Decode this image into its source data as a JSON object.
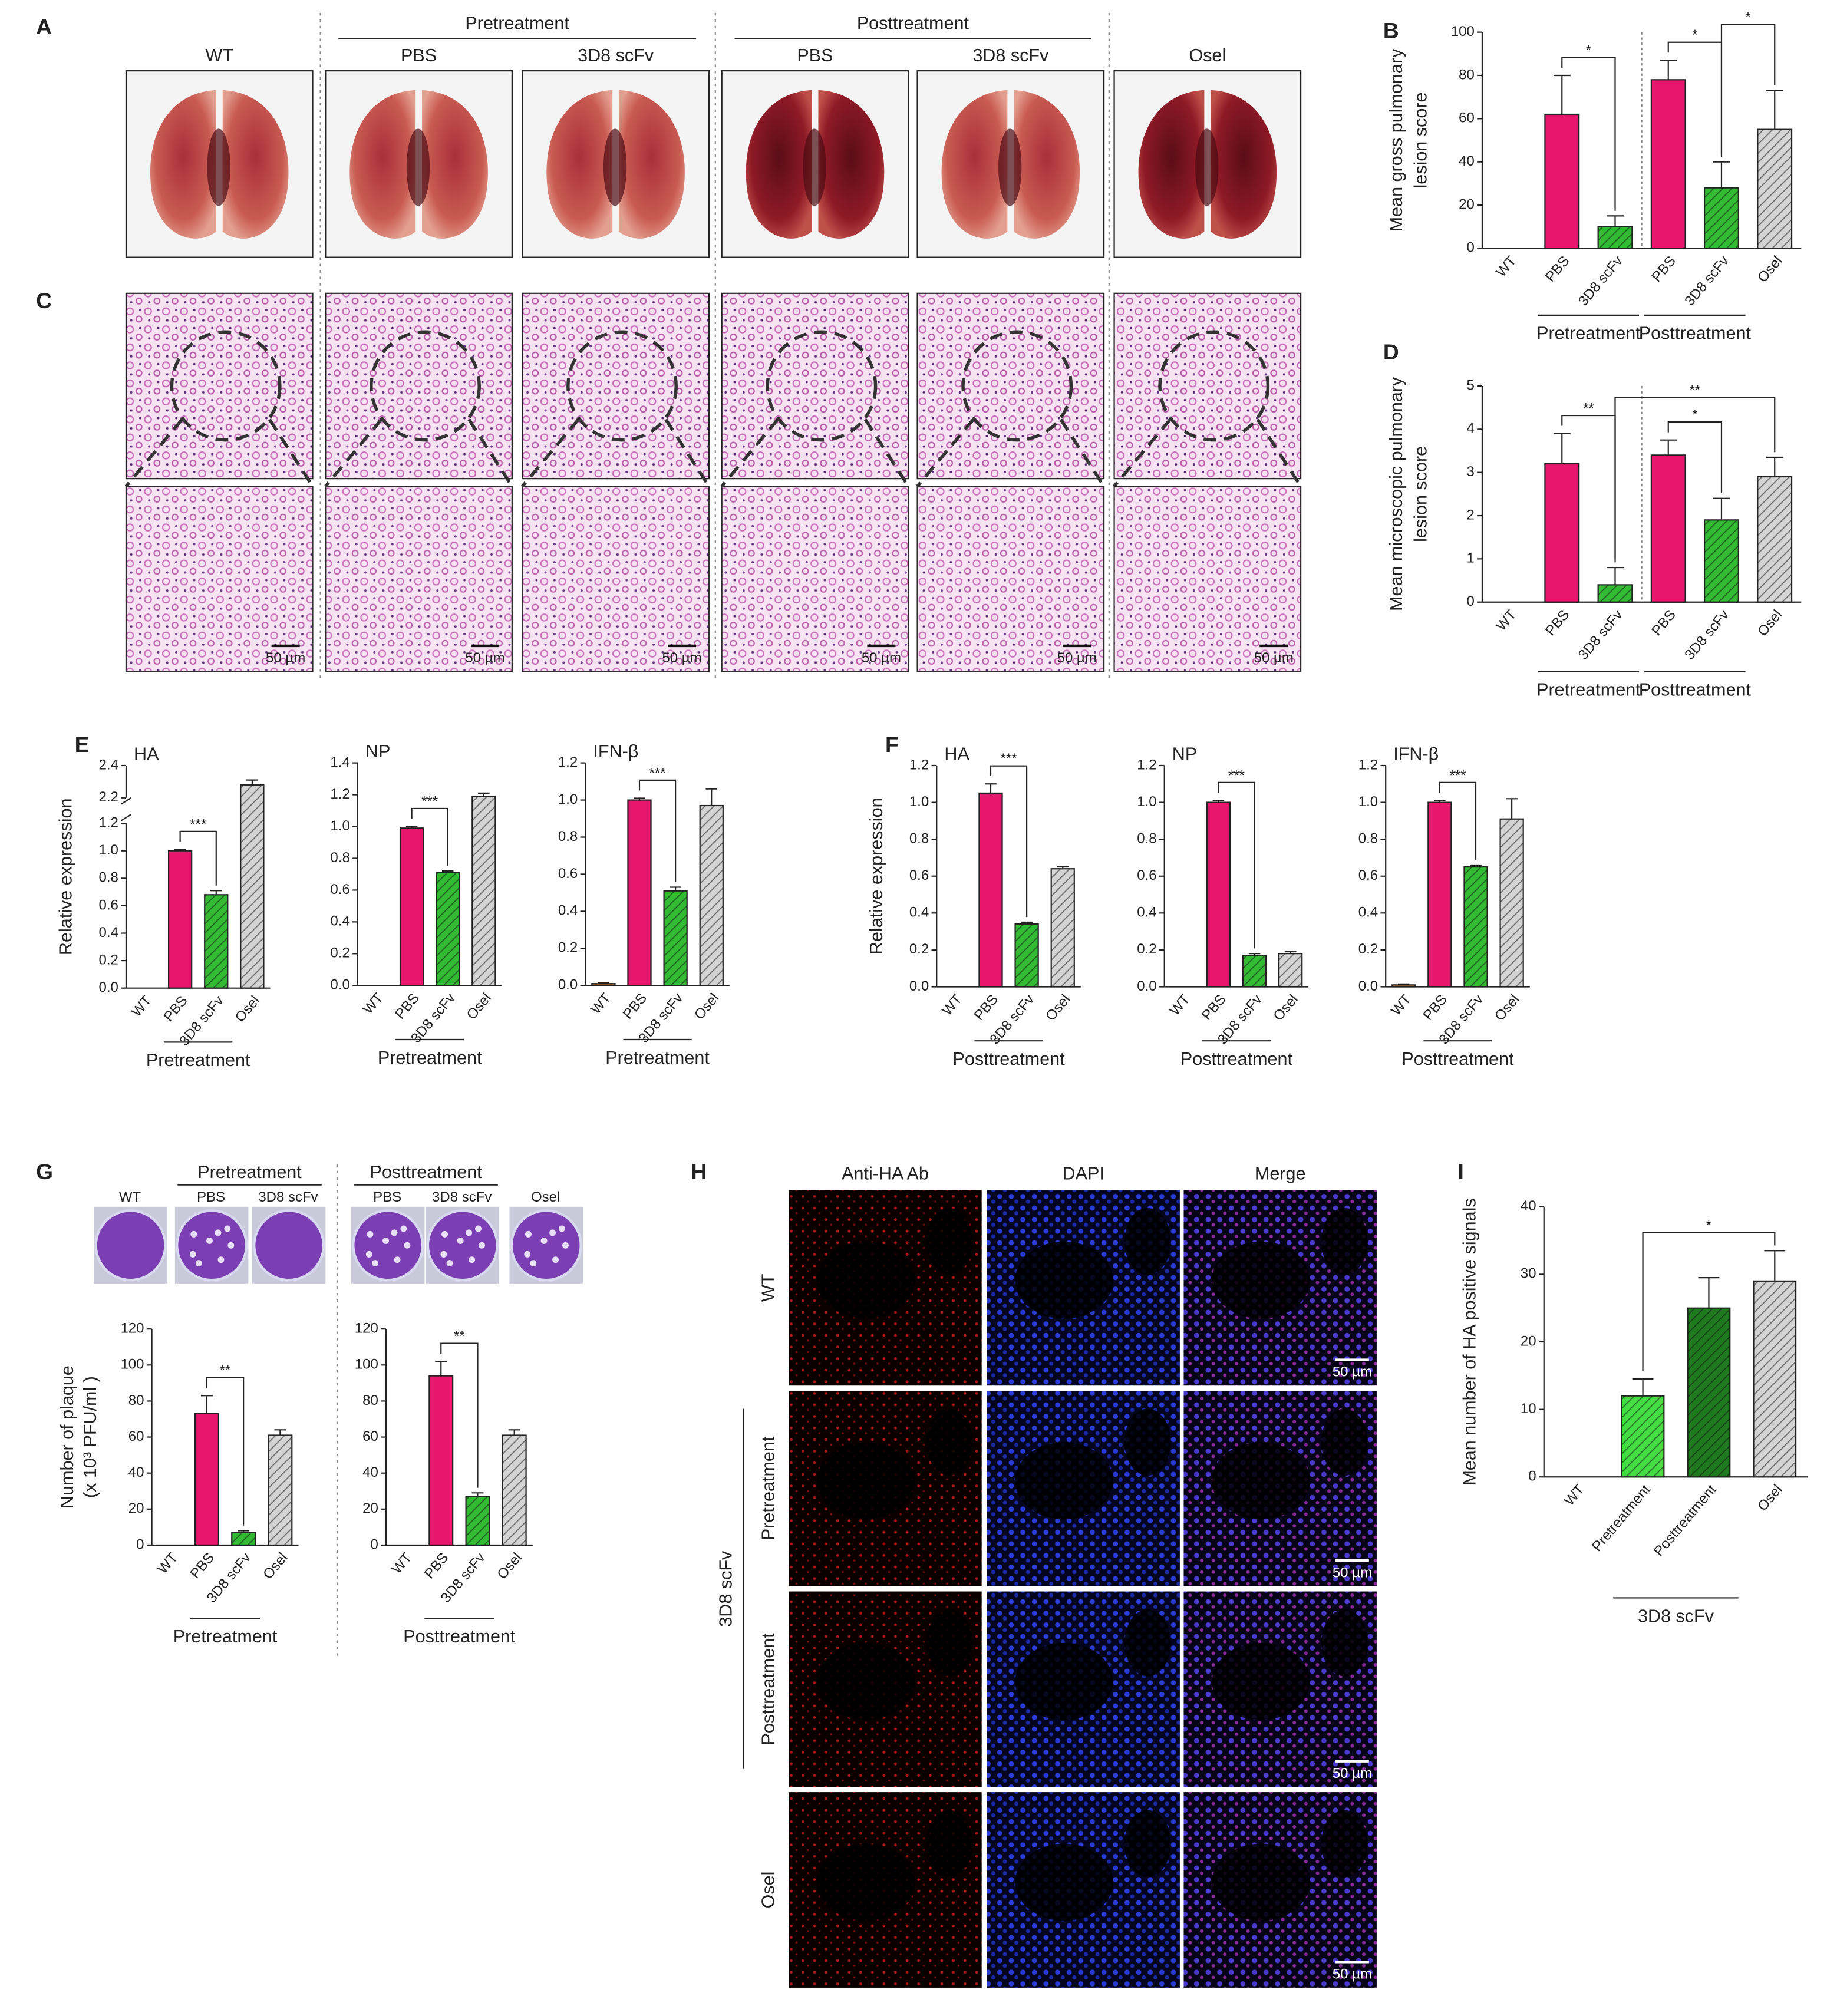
{
  "figure": {
    "panel_labels": [
      "A",
      "B",
      "C",
      "D",
      "E",
      "F",
      "G",
      "H",
      "I"
    ],
    "lungs": {
      "headers": [
        "Pretreatment",
        "Posttreatment"
      ],
      "columns": [
        "WT",
        "PBS",
        "3D8 scFv",
        "PBS",
        "3D8 scFv",
        "Osel"
      ]
    },
    "histology": {
      "scale_bars": [
        "50 µm",
        "50 µm",
        "50 µm",
        "50 µm",
        "50 µm",
        "50 µm"
      ]
    },
    "plaques": {
      "headers": [
        "Pretreatment",
        "Posttreatment"
      ],
      "wells": [
        "WT",
        "PBS",
        "3D8 scFv",
        "PBS",
        "3D8 scFv",
        "Osel"
      ]
    },
    "fluorescence": {
      "channels": [
        "Anti-HA Ab",
        "DAPI",
        "Merge"
      ],
      "rows": [
        "WT",
        "Pretreatment",
        "Posttreatment",
        "Osel"
      ],
      "group": "3D8 scFv",
      "scale_bars": [
        "50 µm",
        "50 µm",
        "50 µm",
        "50 µm"
      ]
    }
  },
  "chart_data": [
    {
      "type": "bar",
      "ylabel": [
        "Mean gross pulmonary",
        "lesion score"
      ],
      "categories": [
        "WT",
        "PBS",
        "3D8 scFv",
        "PBS",
        "3D8 scFv",
        "Osel"
      ],
      "values": [
        0,
        62,
        10,
        78,
        28,
        55
      ],
      "errors": [
        null,
        18,
        5,
        9,
        12,
        18
      ],
      "colors": [
        "#ffffff",
        "#e8176e",
        "#33bb33",
        "#e8176e",
        "#33bb33",
        "#d4d4d4"
      ],
      "hatch": [
        false,
        false,
        true,
        false,
        true,
        true
      ],
      "ylim": [
        0,
        100
      ],
      "yticks": [
        0,
        20,
        40,
        60,
        80,
        100
      ],
      "groups": [
        {
          "label": "Pretreatment",
          "from": 1,
          "to": 2
        },
        {
          "label": "Posttreatment",
          "from": 3,
          "to": 4
        }
      ],
      "divider": true,
      "significance": [
        {
          "label": "*",
          "from": 1,
          "to": 2
        },
        {
          "label": "*",
          "from": 3,
          "to": 4
        },
        {
          "label": "*",
          "from": 4,
          "to": 5
        }
      ]
    },
    {
      "type": "bar",
      "ylabel": [
        "Mean microscopic pulmonary",
        "lesion score"
      ],
      "categories": [
        "WT",
        "PBS",
        "3D8 scFv",
        "PBS",
        "3D8 scFv",
        "Osel"
      ],
      "values": [
        0,
        3.2,
        0.4,
        3.4,
        1.9,
        2.9
      ],
      "errors": [
        null,
        0.7,
        0.4,
        0.35,
        0.5,
        0.45
      ],
      "colors": [
        "#ffffff",
        "#e8176e",
        "#33bb33",
        "#e8176e",
        "#33bb33",
        "#d4d4d4"
      ],
      "hatch": [
        false,
        false,
        true,
        false,
        true,
        true
      ],
      "ylim": [
        0,
        5
      ],
      "yticks": [
        0,
        1,
        2,
        3,
        4,
        5
      ],
      "groups": [
        {
          "label": "Pretreatment",
          "from": 1,
          "to": 2
        },
        {
          "label": "Posttreatment",
          "from": 3,
          "to": 4
        }
      ],
      "divider": true,
      "significance": [
        {
          "label": "**",
          "from": 1,
          "to": 2
        },
        {
          "label": "*",
          "from": 3,
          "to": 4
        },
        {
          "label": "**",
          "from": 2,
          "to": 5
        }
      ]
    },
    {
      "type": "bar",
      "title": "HA",
      "ylabel": [
        "Relative expression"
      ],
      "categories": [
        "WT",
        "PBS",
        "3D8 scFv",
        "Osel"
      ],
      "values": [
        0,
        1.0,
        0.68,
        2.28
      ],
      "errors": [
        null,
        0.01,
        0.03,
        0.03
      ],
      "colors": [
        "#ffffff",
        "#e8176e",
        "#33bb33",
        "#d4d4d4"
      ],
      "hatch": [
        false,
        false,
        true,
        true
      ],
      "ylim": [
        0,
        2.4
      ],
      "ybreak": [
        1.2,
        2.2
      ],
      "yticks": [
        {
          "value": 0,
          "label": "0.0"
        },
        0.2,
        0.4,
        0.6,
        0.8,
        {
          "value": 1,
          "label": "1.0"
        },
        1.2,
        2.2,
        2.4
      ],
      "groups": [
        {
          "label": "Pretreatment",
          "from": 1,
          "to": 2
        }
      ],
      "significance": [
        {
          "label": "***",
          "from": 1,
          "to": 2
        }
      ]
    },
    {
      "type": "bar",
      "title": "NP",
      "categories": [
        "WT",
        "PBS",
        "3D8 scFv",
        "Osel"
      ],
      "values": [
        0,
        0.99,
        0.71,
        1.19
      ],
      "errors": [
        null,
        0.01,
        0.01,
        0.02
      ],
      "colors": [
        "#ffffff",
        "#e8176e",
        "#33bb33",
        "#d4d4d4"
      ],
      "hatch": [
        false,
        false,
        true,
        true
      ],
      "ylim": [
        0,
        1.4
      ],
      "yticks": [
        {
          "value": 0,
          "label": "0.0"
        },
        0.2,
        0.4,
        0.6,
        0.8,
        {
          "value": 1,
          "label": "1.0"
        },
        1.2,
        1.4
      ],
      "groups": [
        {
          "label": "Pretreatment",
          "from": 1,
          "to": 2
        }
      ],
      "significance": [
        {
          "label": "***",
          "from": 1,
          "to": 2
        }
      ]
    },
    {
      "type": "bar",
      "title": "IFN-β",
      "categories": [
        "WT",
        "PBS",
        "3D8 scFv",
        "Osel"
      ],
      "values": [
        0.01,
        1.0,
        0.51,
        0.97
      ],
      "errors": [
        0.005,
        0.01,
        0.02,
        0.09
      ],
      "colors": [
        "#8a5a2a",
        "#e8176e",
        "#33bb33",
        "#d4d4d4"
      ],
      "hatch": [
        false,
        false,
        true,
        true
      ],
      "ylim": [
        0,
        1.2
      ],
      "yticks": [
        {
          "value": 0,
          "label": "0.0"
        },
        0.2,
        0.4,
        0.6,
        0.8,
        {
          "value": 1,
          "label": "1.0"
        },
        1.2
      ],
      "groups": [
        {
          "label": "Pretreatment",
          "from": 1,
          "to": 2
        }
      ],
      "significance": [
        {
          "label": "***",
          "from": 1,
          "to": 2
        }
      ]
    },
    {
      "type": "bar",
      "title": "HA",
      "ylabel": [
        "Relative expression"
      ],
      "categories": [
        "WT",
        "PBS",
        "3D8 scFv",
        "Osel"
      ],
      "values": [
        0,
        1.05,
        0.34,
        0.64
      ],
      "errors": [
        null,
        0.05,
        0.01,
        0.01
      ],
      "colors": [
        "#ffffff",
        "#e8176e",
        "#33bb33",
        "#d4d4d4"
      ],
      "hatch": [
        false,
        false,
        true,
        true
      ],
      "ylim": [
        0,
        1.2
      ],
      "yticks": [
        {
          "value": 0,
          "label": "0.0"
        },
        0.2,
        0.4,
        0.6,
        0.8,
        {
          "value": 1,
          "label": "1.0"
        },
        1.2
      ],
      "groups": [
        {
          "label": "Posttreatment",
          "from": 1,
          "to": 2
        }
      ],
      "significance": [
        {
          "label": "***",
          "from": 1,
          "to": 2
        }
      ]
    },
    {
      "type": "bar",
      "title": "NP",
      "categories": [
        "WT",
        "PBS",
        "3D8 scFv",
        "Osel"
      ],
      "values": [
        0,
        1.0,
        0.17,
        0.18
      ],
      "errors": [
        null,
        0.01,
        0.01,
        0.01
      ],
      "colors": [
        "#ffffff",
        "#e8176e",
        "#33bb33",
        "#d4d4d4"
      ],
      "hatch": [
        false,
        false,
        true,
        true
      ],
      "ylim": [
        0,
        1.2
      ],
      "yticks": [
        {
          "value": 0,
          "label": "0.0"
        },
        0.2,
        0.4,
        0.6,
        0.8,
        {
          "value": 1,
          "label": "1.0"
        },
        1.2
      ],
      "groups": [
        {
          "label": "Posttreatment",
          "from": 1,
          "to": 2
        }
      ],
      "significance": [
        {
          "label": "***",
          "from": 1,
          "to": 2
        }
      ]
    },
    {
      "type": "bar",
      "title": "IFN-β",
      "categories": [
        "WT",
        "PBS",
        "3D8 scFv",
        "Osel"
      ],
      "values": [
        0.01,
        1.0,
        0.65,
        0.91
      ],
      "errors": [
        0.005,
        0.01,
        0.01,
        0.11
      ],
      "colors": [
        "#c8843c",
        "#e8176e",
        "#33bb33",
        "#d4d4d4"
      ],
      "hatch": [
        false,
        false,
        true,
        true
      ],
      "ylim": [
        0,
        1.2
      ],
      "yticks": [
        {
          "value": 0,
          "label": "0.0"
        },
        0.2,
        0.4,
        0.6,
        0.8,
        {
          "value": 1,
          "label": "1.0"
        },
        1.2
      ],
      "groups": [
        {
          "label": "Posttreatment",
          "from": 1,
          "to": 2
        }
      ],
      "significance": [
        {
          "label": "***",
          "from": 1,
          "to": 2
        }
      ]
    },
    {
      "type": "bar",
      "ylabel": [
        "Number of plaque",
        "(x 10³ PFU/ml )"
      ],
      "categories": [
        "WT",
        "PBS",
        "3D8 scFv",
        "Osel"
      ],
      "values": [
        0,
        73,
        7,
        61
      ],
      "errors": [
        null,
        10,
        1,
        3
      ],
      "colors": [
        "#ffffff",
        "#e8176e",
        "#33bb33",
        "#d4d4d4"
      ],
      "hatch": [
        false,
        false,
        true,
        true
      ],
      "ylim": [
        0,
        120
      ],
      "yticks": [
        0,
        20,
        40,
        60,
        80,
        100,
        120
      ],
      "groups": [
        {
          "label": "Pretreatment",
          "from": 1,
          "to": 2
        }
      ],
      "significance": [
        {
          "label": "**",
          "from": 1,
          "to": 2
        }
      ]
    },
    {
      "type": "bar",
      "categories": [
        "WT",
        "PBS",
        "3D8 scFv",
        "Osel"
      ],
      "values": [
        0,
        94,
        27,
        61
      ],
      "errors": [
        null,
        8,
        2,
        3
      ],
      "colors": [
        "#ffffff",
        "#e8176e",
        "#33bb33",
        "#d4d4d4"
      ],
      "hatch": [
        false,
        false,
        true,
        true
      ],
      "ylim": [
        0,
        120
      ],
      "yticks": [
        0,
        20,
        40,
        60,
        80,
        100,
        120
      ],
      "groups": [
        {
          "label": "Posttreatment",
          "from": 1,
          "to": 2
        }
      ],
      "significance": [
        {
          "label": "**",
          "from": 1,
          "to": 2
        }
      ]
    },
    {
      "type": "bar",
      "ylabel": [
        "Mean number of HA positive signals"
      ],
      "categories": [
        "WT",
        "Pretreatment",
        "Posttreatment",
        "Osel"
      ],
      "values": [
        0,
        12,
        25,
        29
      ],
      "errors": [
        null,
        2.5,
        4.5,
        4.5
      ],
      "colors": [
        "#ffffff",
        "#44dd44",
        "#1f7a1f",
        "#d4d4d4"
      ],
      "hatch": [
        false,
        true,
        true,
        true
      ],
      "ylim": [
        0,
        40
      ],
      "yticks": [
        0,
        10,
        20,
        30,
        40
      ],
      "groups": [
        {
          "label": "3D8 scFv",
          "from": 1,
          "to": 2
        }
      ],
      "significance": [
        {
          "label": "*",
          "from": 1,
          "to": 3
        }
      ]
    }
  ]
}
